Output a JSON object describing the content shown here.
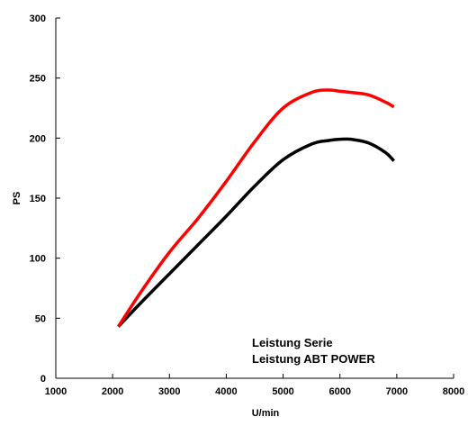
{
  "chart_data": {
    "type": "line",
    "title": "",
    "xlabel": "U/min",
    "ylabel": "PS",
    "xlim": [
      1000,
      8000
    ],
    "ylim": [
      0,
      300
    ],
    "x_ticks": [
      1000,
      2000,
      3000,
      4000,
      5000,
      6000,
      7000,
      8000
    ],
    "y_ticks": [
      0,
      50,
      100,
      150,
      200,
      250,
      300
    ],
    "grid": false,
    "legend_position": "bottom-right",
    "series": [
      {
        "name": "Leistung Serie",
        "color": "#000000",
        "x": [
          2100,
          2500,
          3000,
          3500,
          4000,
          4500,
          5000,
          5500,
          5800,
          6000,
          6200,
          6500,
          6800,
          6950
        ],
        "values": [
          43,
          63,
          87,
          111,
          135,
          160,
          182,
          195,
          198,
          199,
          199,
          196,
          188,
          181
        ]
      },
      {
        "name": "Leistung ABT POWER",
        "color": "#ff0000",
        "x": [
          2100,
          2500,
          3000,
          3500,
          4000,
          4500,
          5000,
          5500,
          5800,
          6000,
          6200,
          6500,
          6800,
          6950
        ],
        "values": [
          43,
          72,
          105,
          133,
          164,
          197,
          225,
          238,
          240,
          239,
          238,
          236,
          230,
          226
        ]
      }
    ]
  }
}
